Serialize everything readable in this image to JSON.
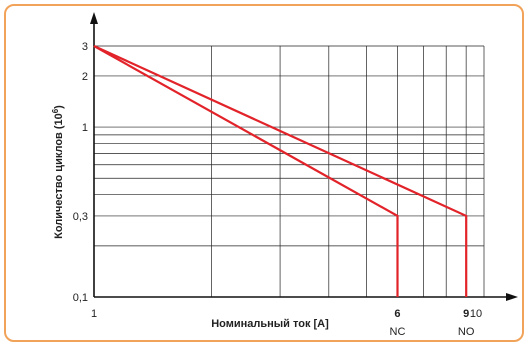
{
  "chart_data": {
    "type": "line",
    "title": "",
    "xlabel": "Номинальный ток [A]",
    "ylabel_text": "Количество циклов (10",
    "ylabel_exp": "6",
    "ylabel_close": ")",
    "xscale": "log",
    "yscale": "log",
    "xlim": [
      1,
      10
    ],
    "ylim": [
      0.1,
      3
    ],
    "grid": true,
    "x_tick_labels": [
      {
        "value": 1,
        "label": "1",
        "bold": false
      },
      {
        "value": 6,
        "label": "6",
        "bold": true
      },
      {
        "value": 9,
        "label": "9",
        "bold": true
      },
      {
        "value": 10,
        "label": "10",
        "bold": false
      }
    ],
    "y_tick_labels": [
      {
        "value": 3,
        "label": "3"
      },
      {
        "value": 2,
        "label": "2"
      },
      {
        "value": 1,
        "label": "1"
      },
      {
        "value": 0.3,
        "label": "0,3"
      },
      {
        "value": 0.1,
        "label": "0,1"
      }
    ],
    "contact_labels": [
      {
        "x": 6,
        "label": "NC"
      },
      {
        "x": 9,
        "label": "NO"
      }
    ],
    "series": [
      {
        "name": "NC",
        "color": "#e2232a",
        "points": [
          [
            1,
            3
          ],
          [
            6,
            0.3
          ],
          [
            6,
            0.1
          ]
        ]
      },
      {
        "name": "NO",
        "color": "#e2232a",
        "points": [
          [
            1,
            3
          ],
          [
            9,
            0.3
          ],
          [
            9,
            0.1
          ]
        ]
      }
    ]
  }
}
